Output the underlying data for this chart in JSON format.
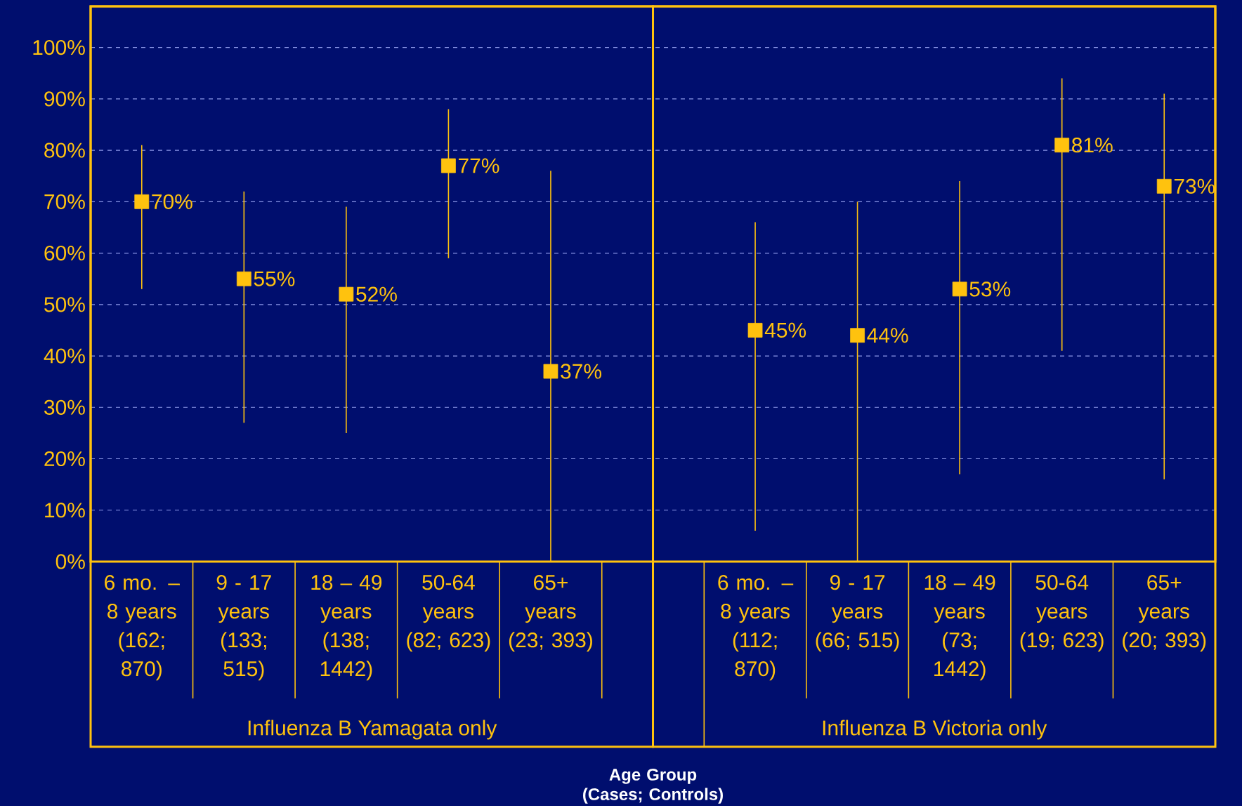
{
  "chart_data": {
    "type": "scatter",
    "categories": [
      "6 mo. – 8 years (162; 870)",
      "9 - 17 years (133; 515)",
      "18 – 49 years (138; 1442)",
      "50-64 years (82; 623)",
      "65+ years (23; 393)",
      null,
      "6 mo. – 8 years (112; 870)",
      "9 - 17 years (66; 515)",
      "18 – 49 years (73; 1442)",
      "50-64 years (19; 623)",
      "65+ years (20; 393)"
    ],
    "values": [
      70,
      55,
      52,
      77,
      37,
      null,
      45,
      44,
      53,
      81,
      73
    ],
    "errors": [
      [
        53,
        81
      ],
      [
        27,
        72
      ],
      [
        25,
        69
      ],
      [
        59,
        88
      ],
      [
        0,
        76
      ],
      null,
      [
        6,
        66
      ],
      [
        0,
        70
      ],
      [
        17,
        74
      ],
      [
        41,
        94
      ],
      [
        16,
        91
      ]
    ],
    "value_labels": [
      "70%",
      "55%",
      "52%",
      "77%",
      "37%",
      null,
      "45%",
      "44%",
      "53%",
      "81%",
      "73%"
    ],
    "color": "#ffc20e",
    "marker": "square",
    "grid": "y",
    "ylim": [
      0,
      108
    ],
    "yticks": [
      {
        "value": 0,
        "label": "0%"
      },
      {
        "value": 10,
        "label": "10%"
      },
      {
        "value": 20,
        "label": "20%"
      },
      {
        "value": 30,
        "label": "30%"
      },
      {
        "value": 40,
        "label": "40%"
      },
      {
        "value": 50,
        "label": "50%"
      },
      {
        "value": 60,
        "label": "60%"
      },
      {
        "value": 70,
        "label": "70%"
      },
      {
        "value": 80,
        "label": "80%"
      },
      {
        "value": 90,
        "label": "90%"
      },
      {
        "value": 100,
        "label": "100%"
      }
    ],
    "annotations": [
      "Influenza B Yamagata only",
      "Influenza B Victoria only",
      "**Age Group (Cases; Controls)**"
    ]
  }
}
